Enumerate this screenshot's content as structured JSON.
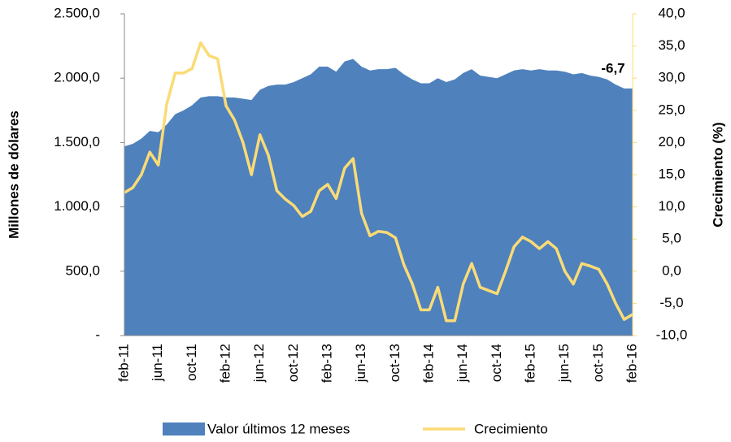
{
  "chart_data": {
    "type": "area",
    "y_label": "Millones de dólares",
    "y2_label": "Crecimiento (%)",
    "categories": [
      "feb-11",
      null,
      null,
      null,
      "jun-11",
      null,
      null,
      null,
      "oct-11",
      null,
      null,
      null,
      "feb-12",
      null,
      null,
      null,
      "jun-12",
      null,
      null,
      null,
      "oct-12",
      null,
      null,
      null,
      "feb-13",
      null,
      null,
      null,
      "jun-13",
      null,
      null,
      null,
      "oct-13",
      null,
      null,
      null,
      "feb-14",
      null,
      null,
      null,
      "jun-14",
      null,
      null,
      null,
      "oct-14",
      null,
      null,
      null,
      "feb-15",
      null,
      null,
      null,
      "jun-15",
      null,
      null,
      null,
      "oct-15",
      null,
      null,
      null,
      "feb-16"
    ],
    "series": [
      {
        "name": "Valor últimos 12 meses",
        "type": "area",
        "color": "#4f81bd",
        "values": [
          1470,
          1490,
          1530,
          1590,
          1580,
          1640,
          1720,
          1750,
          1790,
          1850,
          1860,
          1860,
          1850,
          1850,
          1840,
          1830,
          1910,
          1940,
          1950,
          1950,
          1970,
          2000,
          2030,
          2090,
          2090,
          2050,
          2130,
          2150,
          2090,
          2060,
          2070,
          2070,
          2080,
          2030,
          1990,
          1960,
          1960,
          2000,
          1970,
          1990,
          2040,
          2070,
          2020,
          2010,
          2000,
          2030,
          2060,
          2070,
          2060,
          2070,
          2060,
          2060,
          2050,
          2030,
          2040,
          2020,
          2010,
          1990,
          1950,
          1920,
          1920
        ]
      },
      {
        "name": "Crecimiento",
        "type": "line",
        "axis": "y2",
        "color": "#fadb76",
        "values": [
          12.2,
          13,
          15,
          18.5,
          16.5,
          26,
          30.8,
          30.8,
          31.5,
          35.5,
          33.5,
          33,
          25.7,
          23.5,
          20,
          15,
          21.2,
          18,
          12.5,
          11.2,
          10.2,
          8.5,
          9.3,
          12.5,
          13.5,
          11.3,
          16,
          17.5,
          9,
          5.5,
          6.2,
          6,
          5.2,
          1,
          -2,
          -6,
          -6,
          -2.5,
          -7.7,
          -7.7,
          -2,
          1.2,
          -2.5,
          -3,
          -3.5,
          0,
          3.8,
          5.3,
          4.6,
          3.5,
          4.6,
          3.5,
          0,
          -2,
          1.2,
          0.8,
          0.3,
          -2,
          -5,
          -7.5,
          -6.7
        ],
        "value_labels": [
          null,
          null,
          null,
          null,
          null,
          null,
          null,
          null,
          null,
          null,
          null,
          null,
          null,
          null,
          null,
          null,
          null,
          null,
          null,
          null,
          null,
          null,
          null,
          null,
          null,
          null,
          null,
          null,
          null,
          null,
          null,
          null,
          null,
          null,
          null,
          null,
          null,
          null,
          null,
          null,
          null,
          null,
          null,
          null,
          null,
          null,
          null,
          null,
          null,
          null,
          null,
          null,
          null,
          null,
          null,
          null,
          null,
          null,
          null,
          null,
          "-6,7"
        ]
      }
    ],
    "ylim": [
      0,
      2500
    ],
    "yticks": [
      {
        "value": 0,
        "label": "-"
      },
      {
        "value": 500,
        "label": "500,0"
      },
      {
        "value": 1000,
        "label": "1.000,0"
      },
      {
        "value": 1500,
        "label": "1.500,0"
      },
      {
        "value": 2000,
        "label": "2.000,0"
      },
      {
        "value": 2500,
        "label": "2.500,0"
      }
    ],
    "y2lim": [
      -10,
      40
    ],
    "y2ticks": [
      {
        "value": -10,
        "label": "-10,0"
      },
      {
        "value": -5,
        "label": "-5,0"
      },
      {
        "value": 0,
        "label": "0,0"
      },
      {
        "value": 5,
        "label": "5,0"
      },
      {
        "value": 10,
        "label": "10,0"
      },
      {
        "value": 15,
        "label": "15,0"
      },
      {
        "value": 20,
        "label": "20,0"
      },
      {
        "value": 25,
        "label": "25,0"
      },
      {
        "value": 30,
        "label": "30,0"
      },
      {
        "value": 35,
        "label": "35,0"
      },
      {
        "value": 40,
        "label": "40,0"
      }
    ],
    "legend": "bottom"
  }
}
